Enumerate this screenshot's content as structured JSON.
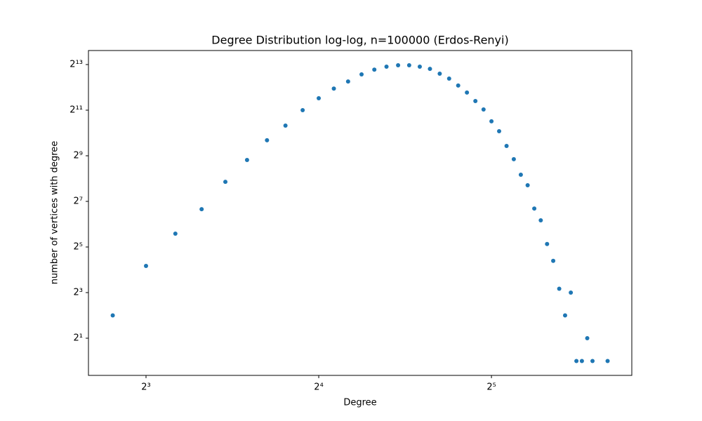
{
  "chart_data": {
    "type": "scatter",
    "title": "Degree Distribution log-log, n=100000 (Erdos-Renyi)",
    "x_label": "Degree",
    "y_label": "number of vertices with degree",
    "log_base": 2,
    "xscale": "log",
    "yscale": "log",
    "grid": false,
    "xlim": [
      6.35,
      56.2
    ],
    "ylim": [
      0.646,
      12548
    ],
    "xticks": [
      {
        "value": 8,
        "label": "2³"
      },
      {
        "value": 16,
        "label": "2⁴"
      },
      {
        "value": 32,
        "label": "2⁵"
      }
    ],
    "yticks": [
      {
        "value": 2,
        "label": "2¹"
      },
      {
        "value": 8,
        "label": "2³"
      },
      {
        "value": 32,
        "label": "2⁵"
      },
      {
        "value": 128,
        "label": "2⁷"
      },
      {
        "value": 512,
        "label": "2⁹"
      },
      {
        "value": 2048,
        "label": "2¹¹"
      },
      {
        "value": 8192,
        "label": "2¹³"
      }
    ],
    "color": "#1f77b4",
    "x": [
      7,
      8,
      9,
      10,
      11,
      12,
      13,
      14,
      15,
      16,
      17,
      18,
      19,
      20,
      21,
      22,
      23,
      24,
      25,
      26,
      27,
      28,
      29,
      30,
      31,
      32,
      33,
      34,
      35,
      36,
      37,
      38,
      39,
      40,
      41,
      42,
      43,
      44,
      45,
      46,
      47,
      48,
      51
    ],
    "values": [
      4,
      18,
      48,
      101,
      232,
      450,
      820,
      1280,
      2048,
      2940,
      3950,
      4900,
      6080,
      7020,
      7690,
      8020,
      8020,
      7690,
      7180,
      6210,
      5350,
      4330,
      3500,
      2700,
      2090,
      1460,
      1080,
      690,
      461,
      288,
      209,
      103,
      72,
      35,
      21,
      9,
      4,
      8,
      1,
      1,
      2,
      1,
      1
    ]
  }
}
